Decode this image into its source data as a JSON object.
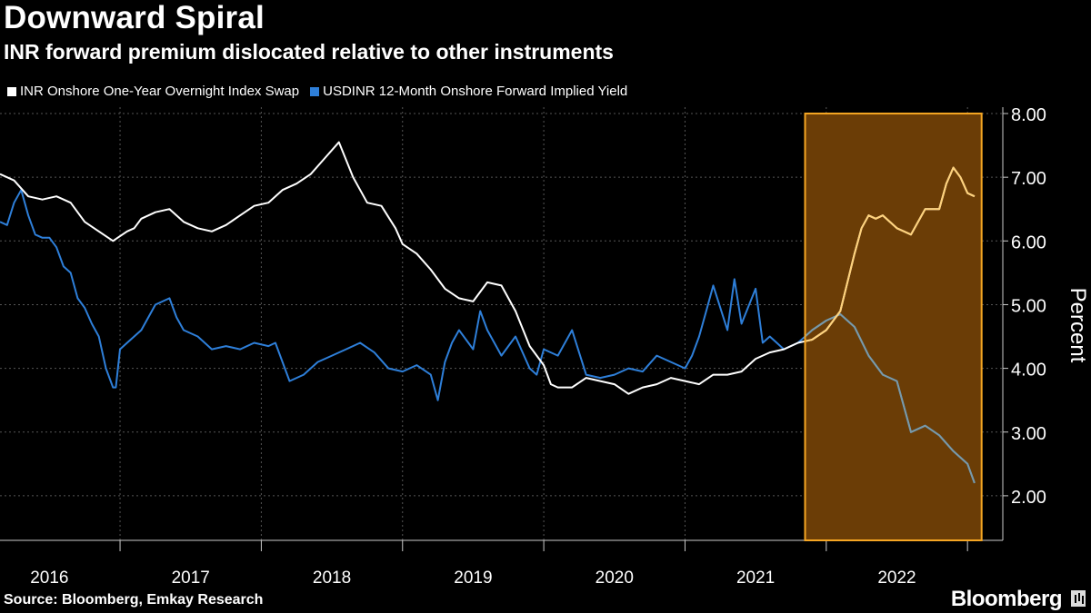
{
  "chart_data": {
    "type": "line",
    "title": "Downward Spiral",
    "subtitle": "INR forward premium dislocated relative to other instruments",
    "ylabel": "Percent",
    "ylim": [
      1.3,
      8.1
    ],
    "yticks": [
      "8.00",
      "7.00",
      "6.00",
      "5.00",
      "4.00",
      "3.00",
      "2.00"
    ],
    "yticks_values": [
      8,
      7,
      6,
      5,
      4,
      3,
      2
    ],
    "xlim": [
      2015.65,
      2022.75
    ],
    "xticks": [
      "2016",
      "2017",
      "2018",
      "2019",
      "2020",
      "2021",
      "2022"
    ],
    "xtick_centers": [
      2016.0,
      2017.0,
      2018.0,
      2019.0,
      2020.0,
      2021.0,
      2022.0
    ],
    "x_boundaries": [
      2016.5,
      2017.5,
      2018.5,
      2019.5,
      2020.5,
      2021.5,
      2022.5
    ],
    "highlight": {
      "x_start": 2021.35,
      "x_end": 2022.6,
      "y_start": 1.3,
      "y_end": 8.0,
      "color": "#f5a623"
    },
    "grid": true,
    "legend": "top-left",
    "series": [
      {
        "name": "INR Onshore One-Year Overnight Index Swap",
        "color": "#ffffff",
        "highlight_color": "#ffd27a",
        "x": [
          2015.65,
          2015.75,
          2015.85,
          2015.95,
          2016.05,
          2016.15,
          2016.25,
          2016.35,
          2016.45,
          2016.55,
          2016.6,
          2016.65,
          2016.75,
          2016.85,
          2016.95,
          2017.05,
          2017.15,
          2017.25,
          2017.35,
          2017.45,
          2017.55,
          2017.65,
          2017.75,
          2017.85,
          2017.95,
          2018.05,
          2018.15,
          2018.25,
          2018.35,
          2018.45,
          2018.5,
          2018.6,
          2018.7,
          2018.8,
          2018.9,
          2019.0,
          2019.1,
          2019.2,
          2019.3,
          2019.4,
          2019.5,
          2019.55,
          2019.6,
          2019.7,
          2019.8,
          2019.9,
          2020.0,
          2020.1,
          2020.2,
          2020.3,
          2020.4,
          2020.5,
          2020.6,
          2020.7,
          2020.8,
          2020.9,
          2021.0,
          2021.1,
          2021.2,
          2021.3,
          2021.4,
          2021.5,
          2021.6,
          2021.7,
          2021.75,
          2021.8,
          2021.85,
          2021.9,
          2022.0,
          2022.1,
          2022.2,
          2022.3,
          2022.35,
          2022.4,
          2022.45,
          2022.5,
          2022.55
        ],
        "y": [
          7.05,
          6.95,
          6.7,
          6.65,
          6.7,
          6.6,
          6.3,
          6.15,
          6.0,
          6.15,
          6.2,
          6.35,
          6.45,
          6.5,
          6.3,
          6.2,
          6.15,
          6.25,
          6.4,
          6.55,
          6.6,
          6.8,
          6.9,
          7.05,
          7.3,
          7.55,
          7.0,
          6.6,
          6.55,
          6.2,
          5.95,
          5.8,
          5.55,
          5.25,
          5.1,
          5.05,
          5.35,
          5.3,
          4.9,
          4.35,
          4.05,
          3.75,
          3.7,
          3.7,
          3.85,
          3.8,
          3.75,
          3.6,
          3.7,
          3.75,
          3.85,
          3.8,
          3.75,
          3.9,
          3.9,
          3.95,
          4.15,
          4.25,
          4.3,
          4.4,
          4.45,
          4.6,
          4.9,
          5.8,
          6.2,
          6.4,
          6.35,
          6.4,
          6.2,
          6.1,
          6.5,
          6.5,
          6.9,
          7.15,
          7.0,
          6.75,
          6.7
        ]
      },
      {
        "name": "USDINR 12-Month Onshore Forward Implied Yield",
        "color": "#2e7fd9",
        "highlight_color": "#7a9aa8",
        "x": [
          2015.65,
          2015.7,
          2015.75,
          2015.8,
          2015.85,
          2015.9,
          2015.95,
          2016.0,
          2016.05,
          2016.1,
          2016.15,
          2016.2,
          2016.25,
          2016.3,
          2016.35,
          2016.4,
          2016.45,
          2016.47,
          2016.5,
          2016.55,
          2016.65,
          2016.75,
          2016.85,
          2016.9,
          2016.95,
          2017.05,
          2017.15,
          2017.25,
          2017.35,
          2017.45,
          2017.55,
          2017.6,
          2017.7,
          2017.8,
          2017.9,
          2018.0,
          2018.1,
          2018.2,
          2018.3,
          2018.4,
          2018.5,
          2018.6,
          2018.7,
          2018.75,
          2018.8,
          2018.85,
          2018.9,
          2019.0,
          2019.05,
          2019.1,
          2019.2,
          2019.3,
          2019.4,
          2019.45,
          2019.5,
          2019.6,
          2019.7,
          2019.8,
          2019.9,
          2020.0,
          2020.1,
          2020.2,
          2020.3,
          2020.4,
          2020.5,
          2020.55,
          2020.6,
          2020.65,
          2020.7,
          2020.8,
          2020.85,
          2020.9,
          2021.0,
          2021.05,
          2021.1,
          2021.2,
          2021.3,
          2021.4,
          2021.5,
          2021.55,
          2021.6,
          2021.7,
          2021.8,
          2021.9,
          2022.0,
          2022.1,
          2022.2,
          2022.3,
          2022.4,
          2022.5,
          2022.55
        ],
        "y": [
          6.3,
          6.25,
          6.6,
          6.8,
          6.4,
          6.1,
          6.05,
          6.05,
          5.9,
          5.6,
          5.5,
          5.1,
          4.95,
          4.7,
          4.5,
          4.0,
          3.7,
          3.7,
          4.3,
          4.4,
          4.6,
          5.0,
          5.1,
          4.8,
          4.6,
          4.5,
          4.3,
          4.35,
          4.3,
          4.4,
          4.35,
          4.4,
          3.8,
          3.9,
          4.1,
          4.2,
          4.3,
          4.4,
          4.25,
          4.0,
          3.95,
          4.05,
          3.9,
          3.5,
          4.1,
          4.4,
          4.6,
          4.3,
          4.9,
          4.6,
          4.2,
          4.5,
          4.0,
          3.9,
          4.3,
          4.2,
          4.6,
          3.9,
          3.85,
          3.9,
          4.0,
          3.95,
          4.2,
          4.1,
          4.0,
          4.2,
          4.5,
          4.9,
          5.3,
          4.6,
          5.4,
          4.7,
          5.25,
          4.4,
          4.5,
          4.3,
          4.4,
          4.6,
          4.75,
          4.8,
          4.85,
          4.65,
          4.2,
          3.9,
          3.8,
          3.0,
          3.1,
          2.95,
          2.7,
          2.5,
          2.2
        ]
      }
    ]
  },
  "source": "Source: Bloomberg, Emkay Research",
  "brand": "Bloomberg",
  "colors": {
    "background": "#000000",
    "grid": "#555555",
    "highlight_fill": "#6b3d06",
    "highlight_border": "#f5a623"
  }
}
